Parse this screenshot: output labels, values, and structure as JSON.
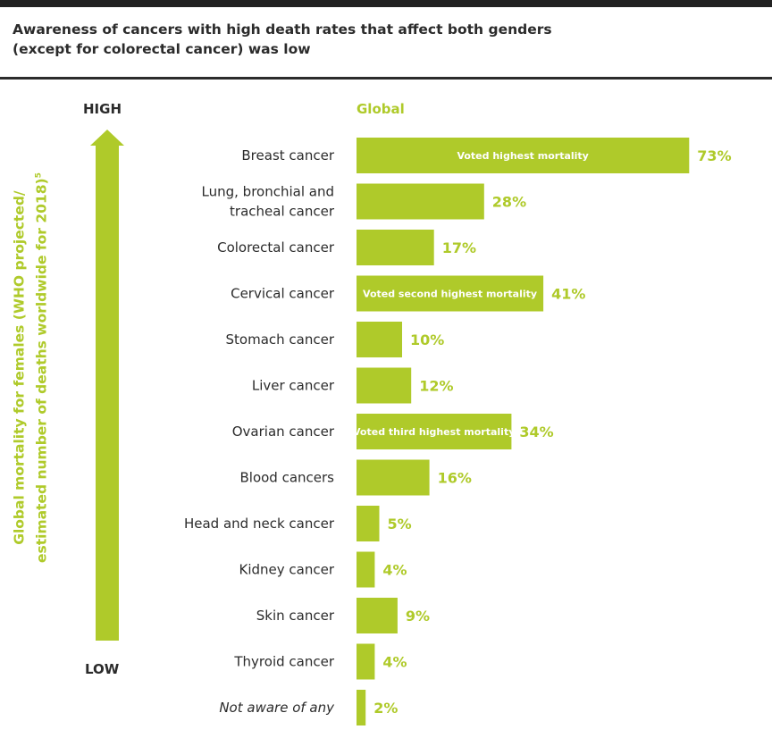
{
  "title_line1": "Awareness of cancers with high death rates that affect both genders",
  "title_line2": "(except for colorectal cancer) was low",
  "axis": {
    "high": "HIGH",
    "low": "LOW",
    "label_line1": "Global mortality for females (WHO projected/",
    "label_line2": "estimated number of deaths worldwide for 2018)",
    "label_sup": "5"
  },
  "colors": {
    "accent": "#AFCA2A",
    "text": "#2B2B2B",
    "inbar_text": "#FFFFFF"
  },
  "chart_data": {
    "type": "bar",
    "orientation": "horizontal",
    "series": [
      {
        "name": "Global",
        "values": [
          73,
          28,
          17,
          41,
          10,
          12,
          34,
          16,
          5,
          4,
          9,
          4,
          2
        ]
      }
    ],
    "categories": [
      [
        "Breast cancer"
      ],
      [
        "Lung, bronchial and",
        "tracheal cancer"
      ],
      [
        "Colorectal cancer"
      ],
      [
        "Cervical cancer"
      ],
      [
        "Stomach cancer"
      ],
      [
        "Liver cancer"
      ],
      [
        "Ovarian cancer"
      ],
      [
        "Blood cancers"
      ],
      [
        "Head and neck cancer"
      ],
      [
        "Kidney cancer"
      ],
      [
        "Skin cancer"
      ],
      [
        "Thyroid cancer"
      ],
      [
        "Not aware of any"
      ]
    ],
    "italic_categories": [
      12
    ],
    "value_labels": [
      "73%",
      "28%",
      "17%",
      "41%",
      "10%",
      "12%",
      "34%",
      "16%",
      "5%",
      "4%",
      "9%",
      "4%",
      "2%"
    ],
    "annotations": [
      {
        "index": 0,
        "text": "Voted highest mortality"
      },
      {
        "index": 3,
        "text": "Voted second highest mortality"
      },
      {
        "index": 6,
        "text": "Voted third highest mortality"
      }
    ],
    "xlim": [
      0,
      80
    ],
    "grid": false
  }
}
